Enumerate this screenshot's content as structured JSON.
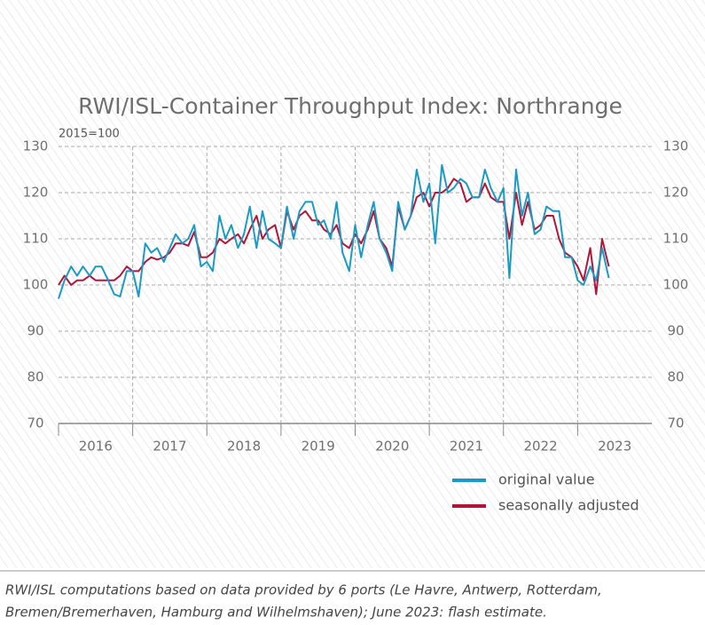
{
  "chart_data": {
    "type": "line",
    "title": "RWI/ISL-Container Throughput Index: Northrange",
    "subtitle": "2015=100",
    "footnote": [
      "RWI/ISL computations based on data provided by 6 ports (Le Havre, Antwerp, Rotterdam,",
      "Bremen/Bremerhaven, Hamburg and Wilhelmshaven); June 2023: flash estimate."
    ],
    "x": [
      2016,
      2016.08,
      2016.17,
      2016.25,
      2016.33,
      2016.42,
      2016.5,
      2016.58,
      2016.67,
      2016.75,
      2016.83,
      2016.92,
      2017,
      2017.08,
      2017.17,
      2017.25,
      2017.33,
      2017.42,
      2017.5,
      2017.58,
      2017.67,
      2017.75,
      2017.83,
      2017.92,
      2018,
      2018.08,
      2018.17,
      2018.25,
      2018.33,
      2018.42,
      2018.5,
      2018.58,
      2018.67,
      2018.75,
      2018.83,
      2018.92,
      2019,
      2019.08,
      2019.17,
      2019.25,
      2019.33,
      2019.42,
      2019.5,
      2019.58,
      2019.67,
      2019.75,
      2019.83,
      2019.92,
      2020,
      2020.08,
      2020.17,
      2020.25,
      2020.33,
      2020.42,
      2020.5,
      2020.58,
      2020.67,
      2020.75,
      2020.83,
      2020.92,
      2021,
      2021.08,
      2021.17,
      2021.25,
      2021.33,
      2021.42,
      2021.5,
      2021.58,
      2021.67,
      2021.75,
      2021.83,
      2021.92,
      2022,
      2022.08,
      2022.17,
      2022.25,
      2022.33,
      2022.42,
      2022.5,
      2022.58,
      2022.67,
      2022.75,
      2022.83,
      2022.92,
      2023,
      2023.08,
      2023.17,
      2023.25,
      2023.33,
      2023.42
    ],
    "series": [
      {
        "name": "original value",
        "color": "#1a9bc4",
        "values": [
          97,
          101,
          104,
          102,
          104,
          102,
          104,
          104,
          101,
          98,
          97.5,
          103,
          103,
          97.5,
          109,
          107,
          108,
          105,
          108,
          111,
          109,
          110,
          113,
          104,
          105,
          103,
          115,
          110,
          113,
          108,
          111,
          117,
          108,
          116,
          110,
          109,
          108,
          117,
          110,
          116,
          118,
          118,
          113,
          114,
          110,
          118,
          107,
          103,
          113,
          106,
          113,
          118,
          110,
          107,
          103,
          118,
          112,
          115,
          125,
          118,
          122,
          109,
          126,
          120,
          121,
          123,
          122,
          119,
          119,
          125,
          121,
          118,
          121,
          101.5,
          125,
          115,
          120,
          111,
          112,
          117,
          116,
          116,
          106,
          106,
          101,
          100,
          104,
          101,
          108,
          101.5
        ]
      },
      {
        "name": "seasonally adjusted",
        "color": "#b0163a",
        "values": [
          100,
          102,
          100,
          101,
          101,
          102,
          101,
          101,
          101,
          101,
          102,
          104,
          103,
          103,
          105,
          106,
          105.5,
          106,
          107,
          109,
          109,
          108.5,
          111.5,
          106,
          106,
          107,
          110,
          109,
          110,
          111,
          109,
          112,
          115,
          110,
          112,
          113,
          108,
          116,
          112,
          115,
          116,
          114,
          114,
          112,
          111,
          113,
          109,
          108,
          111,
          109,
          112,
          116,
          110,
          108,
          104,
          117,
          112,
          115,
          119,
          120,
          117,
          120,
          120,
          121,
          123,
          122,
          118,
          119,
          119,
          122,
          119,
          118,
          118,
          110,
          120,
          113,
          118,
          112,
          113,
          115,
          115,
          110,
          107,
          106,
          104,
          101,
          108,
          98,
          110,
          104
        ]
      }
    ],
    "xlim": [
      2016,
      2024
    ],
    "xticks": [
      2016,
      2017,
      2018,
      2019,
      2020,
      2021,
      2022,
      2023
    ],
    "ylim": [
      70,
      130
    ],
    "yticks": [
      70,
      80,
      90,
      100,
      110,
      120,
      130
    ],
    "grid": true,
    "legend": "bottom-right"
  }
}
